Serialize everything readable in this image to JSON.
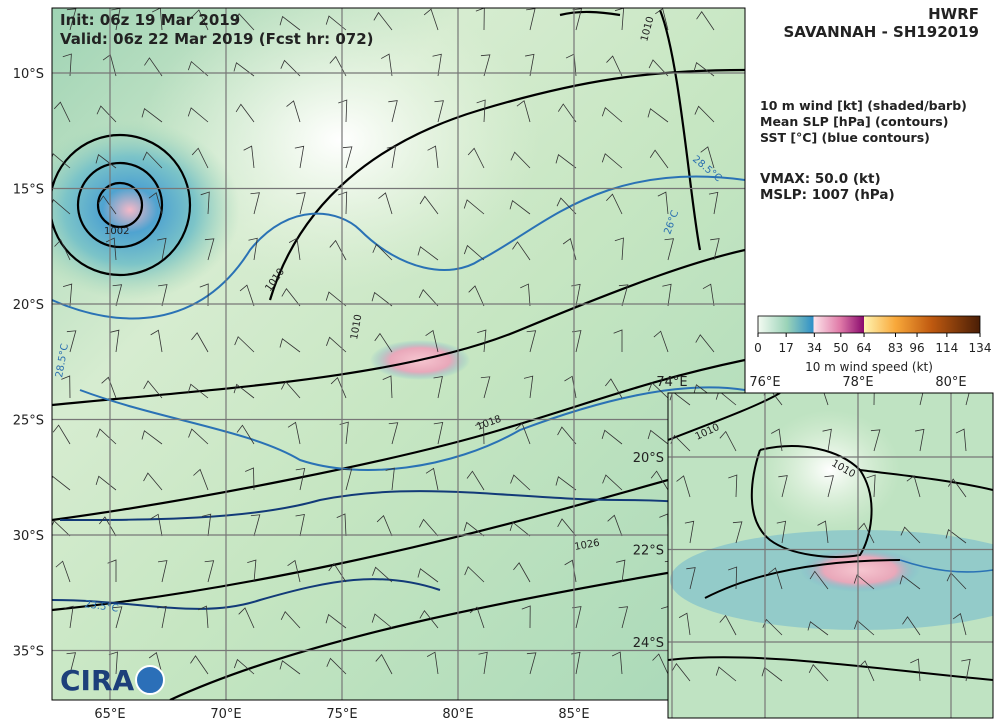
{
  "header": {
    "model": "HWRF",
    "storm": "SAVANNAH - SH192019",
    "init": "Init:  06z 19 Mar 2019",
    "valid": "Valid: 06z 22 Mar 2019 (Fcst hr: 072)"
  },
  "legend": {
    "lines": [
      "10 m wind [kt] (shaded/barb)",
      "Mean SLP [hPa] (contours)",
      "SST [°C] (blue contours)"
    ],
    "vmax": "VMAX:  50.0 (kt)",
    "mslp": "MSLP: 1007 (hPa)"
  },
  "colorbar": {
    "ticks": [
      0,
      17,
      34,
      50,
      64,
      83,
      96,
      114,
      134
    ],
    "label": "10 m wind speed (kt)"
  },
  "map": {
    "lat_labels": [
      "10°S",
      "15°S",
      "20°S",
      "25°S",
      "30°S",
      "35°S"
    ],
    "lon_labels": [
      "65°E",
      "70°E",
      "75°E",
      "80°E",
      "85°E"
    ],
    "contour_labels": [
      "1010",
      "1010",
      "1010",
      "1002",
      "1018",
      "1026",
      "28.5°C",
      "26°C",
      "28.5°C",
      "23.5°C"
    ],
    "logo": "CIRA"
  },
  "inset": {
    "lon_labels": [
      "74°E",
      "76°E",
      "78°E",
      "80°E"
    ],
    "lat_labels": [
      "20°S",
      "22°S",
      "24°S"
    ],
    "contour_labels": [
      "1010",
      "1010"
    ]
  }
}
